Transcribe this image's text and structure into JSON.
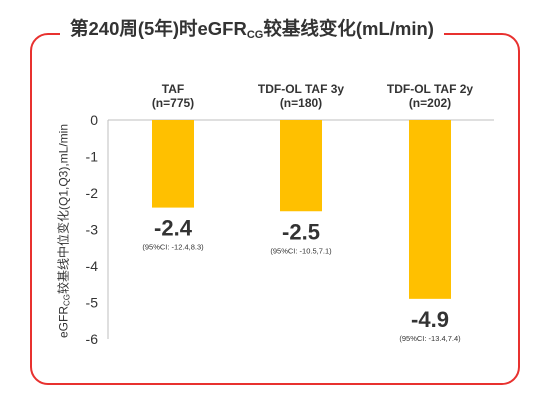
{
  "title": {
    "main": "第240周(5年)时eGFR",
    "sub": "CG",
    "rest": "较基线变化(mL/min)"
  },
  "colors": {
    "frame": "#e8312f",
    "bar": "#ffc000",
    "axis": "#bfbfbf",
    "text": "#333333"
  },
  "chart_data": {
    "type": "bar",
    "ylabel": {
      "main": "eGFR",
      "sub": "CG",
      "rest": "较基线中位变化(Q1,Q3),mL/min"
    },
    "ylim": [
      -6,
      0
    ],
    "yticks": [
      0,
      -1,
      -2,
      -3,
      -4,
      -5,
      -6
    ],
    "categories": [
      {
        "name": "TAF",
        "n": "(n=775)"
      },
      {
        "name": "TDF-OL TAF 3y",
        "n": "(n=180)"
      },
      {
        "name": "TDF-OL TAF 2y",
        "n": "(n=202)"
      }
    ],
    "values": [
      -2.4,
      -2.5,
      -4.9
    ],
    "value_labels": [
      "-2.4",
      "-2.5",
      "-4.9"
    ],
    "ci_labels": [
      "(95%CI: -12.4,8.3)",
      "(95%CI: -10.5,7.1)",
      "(95%CI: -13.4,7.4)"
    ]
  }
}
